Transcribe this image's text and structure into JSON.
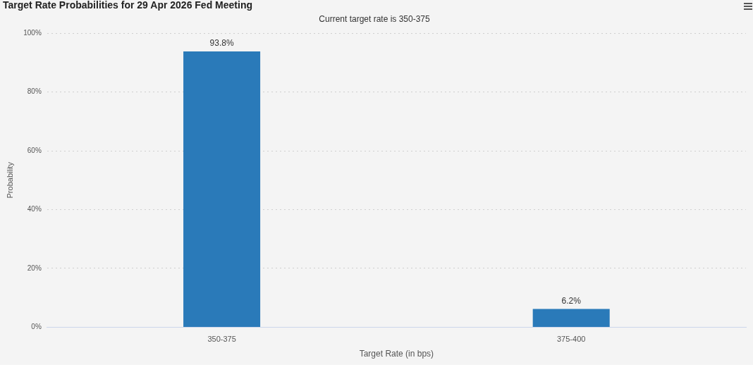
{
  "chart_data": {
    "type": "bar",
    "title": "Target Rate Probabilities for 29 Apr 2026 Fed Meeting",
    "subtitle": "Current target rate is 350-375",
    "xlabel": "Target Rate (in bps)",
    "ylabel": "Probability",
    "categories": [
      "350-375",
      "375-400"
    ],
    "series": [
      {
        "color": "#2a7ab9",
        "values": [
          93.8,
          6.2
        ]
      }
    ],
    "value_labels": [
      "93.8%",
      "6.2%"
    ],
    "ylim": [
      0,
      100
    ],
    "yticks": [
      {
        "value": 0,
        "label": "0%"
      },
      {
        "value": 20,
        "label": "20%"
      },
      {
        "value": 40,
        "label": "40%"
      },
      {
        "value": 60,
        "label": "60%"
      },
      {
        "value": 80,
        "label": "80%"
      },
      {
        "value": 100,
        "label": "100%"
      }
    ],
    "grid": "y",
    "legend": false
  }
}
